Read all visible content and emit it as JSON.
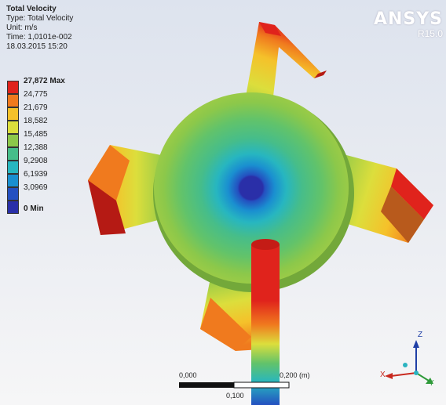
{
  "info": {
    "title": "Total Velocity",
    "type": "Type: Total Velocity",
    "unit": "Unit: m/s",
    "time": "Time: 1,0101e-002",
    "date": "18.03.2015 15:20"
  },
  "brand": {
    "name": "ANSYS",
    "version": "R15.0"
  },
  "legend": {
    "entries": [
      {
        "label": "27,872 Max",
        "color": "#e0231c"
      },
      {
        "label": "24,775",
        "color": "#f07a1e"
      },
      {
        "label": "21,679",
        "color": "#f5c12a"
      },
      {
        "label": "18,582",
        "color": "#dcde3c"
      },
      {
        "label": "15,485",
        "color": "#8cc84a"
      },
      {
        "label": "12,388",
        "color": "#46bd8a"
      },
      {
        "label": "9,2908",
        "color": "#27b6c0"
      },
      {
        "label": "6,1939",
        "color": "#1a8fd0"
      },
      {
        "label": "3,0969",
        "color": "#2450c0"
      },
      {
        "label": "0 Min",
        "color": "#2a2fa8"
      }
    ]
  },
  "scale_bar": {
    "start": "0,000",
    "mid": "0,100",
    "end": "0,200 (m)"
  },
  "triad": {
    "x": "X",
    "y": "Y",
    "z": "Z"
  }
}
